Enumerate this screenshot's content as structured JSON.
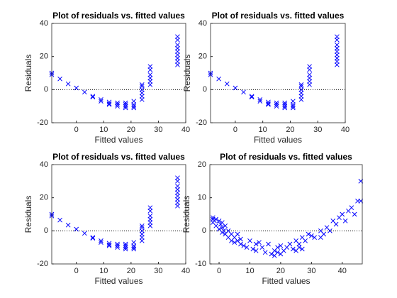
{
  "chart_data": [
    {
      "type": "scatter",
      "title": "Plot of residuals vs. fitted values",
      "x_label": "Fitted values",
      "y_label": "Residuals",
      "xlim": [
        -9,
        40
      ],
      "ylim": [
        -20,
        40
      ],
      "xticks": [
        0,
        10,
        20,
        30,
        40
      ],
      "yticks": [
        -20,
        0,
        20,
        40
      ],
      "color": "#0000ff",
      "reference_line": 0,
      "x": [
        -9,
        -9,
        -6,
        -3,
        0,
        3,
        6,
        6,
        9,
        9,
        12,
        12,
        12,
        15,
        15,
        15,
        18,
        18,
        18,
        18,
        21,
        21,
        21,
        21,
        24,
        24,
        24,
        24,
        24,
        24,
        27,
        27,
        27,
        27,
        27,
        27,
        37,
        37,
        37,
        37,
        37,
        37,
        37,
        37,
        37
      ],
      "values": [
        9,
        10,
        6.5,
        3.5,
        1,
        -1.5,
        -4,
        -4.5,
        -6,
        -7,
        -7.5,
        -8.5,
        -9,
        -8,
        -9,
        -10,
        -8,
        -9,
        -10,
        -11,
        -7,
        -9,
        -10,
        -11,
        -6,
        -4,
        -2,
        0,
        2,
        3,
        3,
        5,
        7,
        9,
        12,
        14,
        15,
        17,
        19,
        21,
        23,
        25,
        27,
        30,
        32
      ]
    },
    {
      "type": "scatter",
      "title": "Plot of residuals vs. fitted values",
      "x_label": "Fitted values",
      "y_label": "Residuals",
      "xlim": [
        -9,
        40
      ],
      "ylim": [
        -20,
        40
      ],
      "xticks": [
        0,
        10,
        20,
        30,
        40
      ],
      "yticks": [
        -20,
        0,
        20,
        40
      ],
      "color": "#0000ff",
      "reference_line": 0,
      "x": [
        -9,
        -9,
        -6,
        -3,
        0,
        3,
        6,
        6,
        9,
        9,
        12,
        12,
        12,
        15,
        15,
        15,
        18,
        18,
        18,
        18,
        21,
        21,
        21,
        21,
        24,
        24,
        24,
        24,
        24,
        24,
        27,
        27,
        27,
        27,
        27,
        27,
        37,
        37,
        37,
        37,
        37,
        37,
        37,
        37,
        37
      ],
      "values": [
        9,
        10,
        6.5,
        3.5,
        1,
        -1.5,
        -4,
        -4.5,
        -6,
        -7,
        -7.5,
        -8.5,
        -9,
        -8,
        -9,
        -10,
        -8,
        -9,
        -10,
        -11,
        -7,
        -9,
        -10,
        -11,
        -6,
        -4,
        -2,
        0,
        2,
        3,
        3,
        5,
        7,
        9,
        12,
        14,
        15,
        17,
        19,
        21,
        23,
        25,
        27,
        30,
        32
      ]
    },
    {
      "type": "scatter",
      "title": "Plot of residuals vs. fitted values",
      "x_label": "Fitted values",
      "y_label": "Residuals",
      "xlim": [
        -9,
        40
      ],
      "ylim": [
        -20,
        40
      ],
      "xticks": [
        0,
        10,
        20,
        30,
        40
      ],
      "yticks": [
        -20,
        0,
        20,
        40
      ],
      "color": "#0000ff",
      "reference_line": 0,
      "x": [
        -9,
        -9,
        -6,
        -3,
        0,
        3,
        6,
        6,
        9,
        9,
        12,
        12,
        12,
        15,
        15,
        15,
        18,
        18,
        18,
        18,
        21,
        21,
        21,
        21,
        24,
        24,
        24,
        24,
        24,
        24,
        27,
        27,
        27,
        27,
        27,
        27,
        37,
        37,
        37,
        37,
        37,
        37,
        37,
        37,
        37
      ],
      "values": [
        9,
        10,
        6.5,
        3.5,
        1,
        -1.5,
        -4,
        -4.5,
        -6,
        -7,
        -7.5,
        -8.5,
        -9,
        -8,
        -9,
        -10,
        -8,
        -9,
        -10,
        -11,
        -7,
        -9,
        -10,
        -11,
        -6,
        -4,
        -2,
        0,
        2,
        3,
        3,
        5,
        7,
        9,
        12,
        14,
        15,
        17,
        19,
        21,
        23,
        25,
        27,
        30,
        32
      ]
    },
    {
      "type": "scatter",
      "title": "Plot of residuals vs. fitted values",
      "x_label": "Fitted values",
      "y_label": "Residuals",
      "xlim": [
        -3,
        46.5
      ],
      "ylim": [
        -10,
        20
      ],
      "xticks": [
        0,
        10,
        20,
        30,
        40
      ],
      "yticks": [
        -10,
        0,
        10,
        20
      ],
      "color": "#0000ff",
      "reference_line": 0,
      "x": [
        -2,
        -2,
        -2,
        -1.5,
        -1,
        -1,
        0,
        0,
        0.5,
        1,
        1,
        1,
        1.5,
        2,
        2,
        3,
        3,
        4,
        4,
        5,
        5,
        6,
        6,
        7,
        7,
        8,
        9,
        10,
        11,
        12,
        12,
        13,
        14,
        15,
        16,
        17,
        18,
        18,
        19,
        19,
        20,
        20,
        21,
        22,
        23,
        24,
        25,
        25,
        26,
        26,
        27,
        27,
        28,
        29,
        30,
        31,
        33,
        33,
        34,
        35,
        36,
        37,
        38,
        39,
        40,
        41,
        42,
        43,
        44,
        45,
        46,
        46
      ],
      "values": [
        3.5,
        4,
        2.5,
        3,
        3.5,
        1.5,
        3,
        0.5,
        2,
        2.5,
        -0.5,
        1,
        0,
        1.5,
        -1,
        0,
        -2,
        -1,
        -3,
        -2,
        -3.5,
        -3,
        -1,
        -4,
        -2.5,
        -4.5,
        -5,
        -3,
        -5.5,
        -6,
        -4,
        -3.5,
        -5,
        -6.5,
        -4,
        -7,
        -6,
        -7.5,
        -5,
        -6.5,
        -7,
        -4.5,
        -6,
        -5,
        -4,
        -5.5,
        -6,
        -3,
        -4,
        -5,
        -5.5,
        -2,
        -3,
        -1,
        -1.5,
        -2,
        0,
        -2,
        -1,
        1,
        0,
        3,
        2,
        4,
        5,
        3,
        6,
        7,
        5,
        9,
        15,
        9
      ]
    }
  ]
}
